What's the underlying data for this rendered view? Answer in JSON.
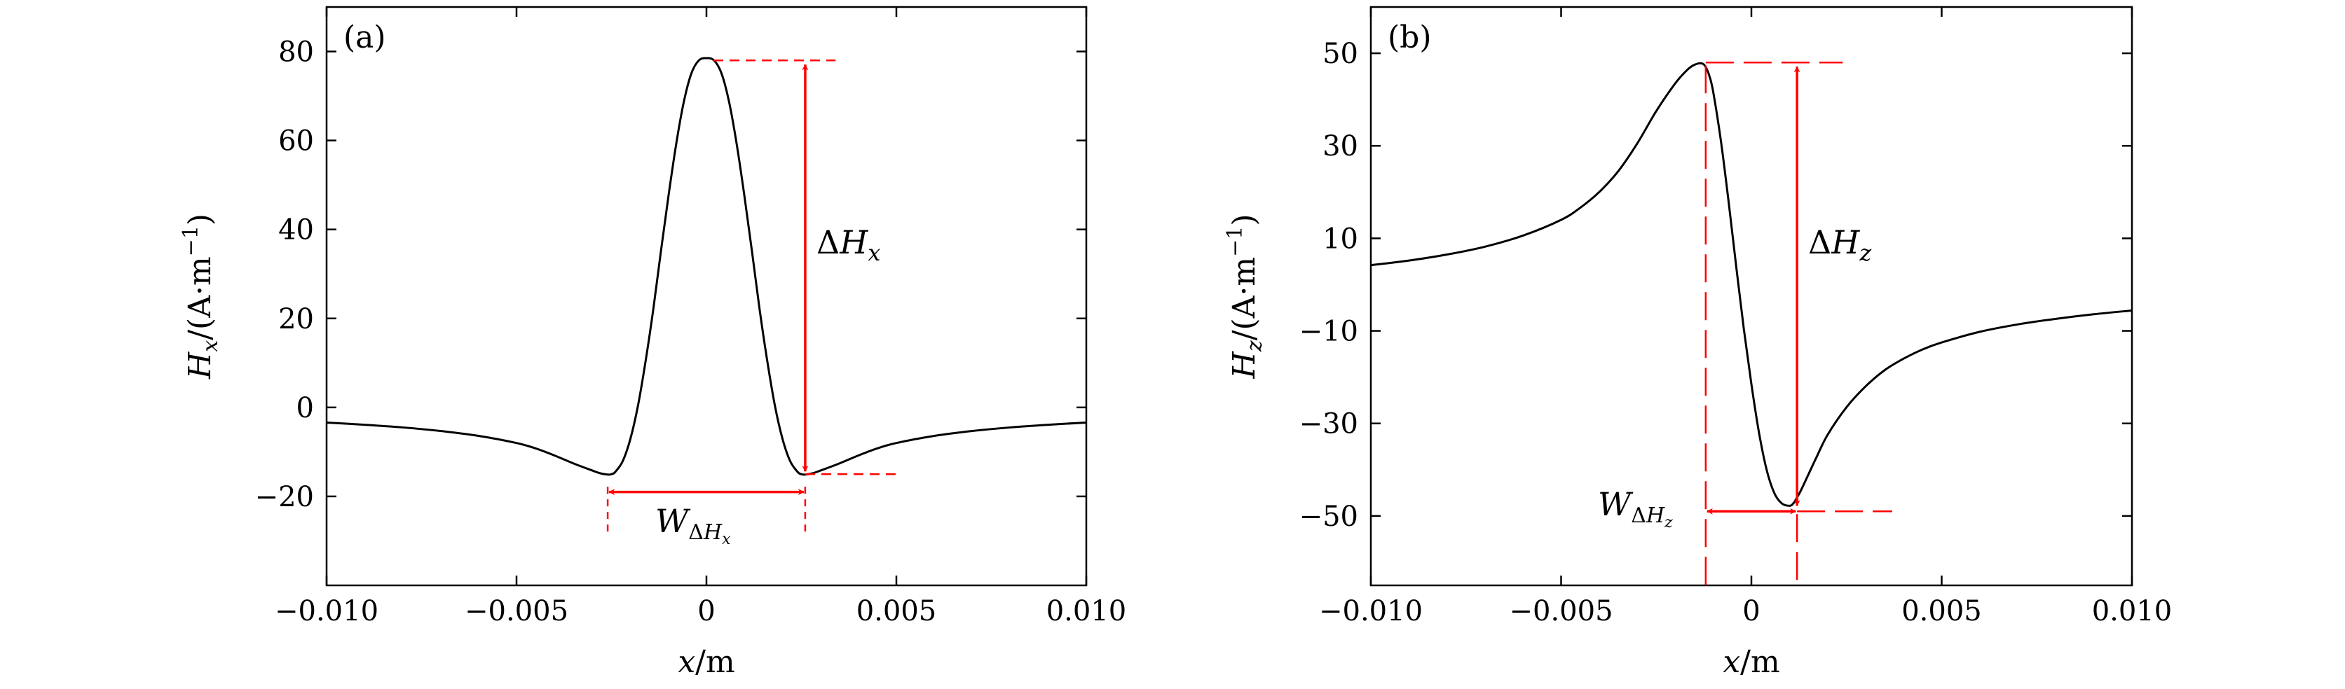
{
  "chart_data": [
    {
      "panel_label": "(a)",
      "type": "line",
      "xlabel_var": "x",
      "xlabel_unit": "/m",
      "ylabel_var": "H",
      "ylabel_sub": "x",
      "ylabel_unit": "/(A·m",
      "ylabel_exp": "−1",
      "ylabel_close": ")",
      "xlim": [
        -0.01,
        0.01
      ],
      "ylim": [
        -40,
        90
      ],
      "xticks": [
        -0.01,
        -0.005,
        0,
        0.005,
        0.01
      ],
      "xtick_labels": [
        "−0.010",
        "−0.005",
        "0",
        "0.005",
        "0.010"
      ],
      "yticks": [
        -20,
        0,
        20,
        40,
        60,
        80
      ],
      "ytick_labels": [
        "−20",
        "0",
        "20",
        "40",
        "60",
        "80"
      ],
      "series": [
        {
          "x": [
            -0.01,
            -0.009,
            -0.008,
            -0.007,
            -0.006,
            -0.005,
            -0.0045,
            -0.004,
            -0.0035,
            -0.003,
            -0.0028,
            -0.0026,
            -0.0025,
            -0.0024,
            -0.0022,
            -0.002,
            -0.0018,
            -0.0016,
            -0.0014,
            -0.0012,
            -0.001,
            -0.0008,
            -0.0006,
            -0.0004,
            -0.0002,
            0,
            0.0002,
            0.0004,
            0.0006,
            0.0008,
            0.001,
            0.0012,
            0.0014,
            0.0016,
            0.0018,
            0.002,
            0.0022,
            0.0024,
            0.0025,
            0.0026,
            0.0028,
            0.003,
            0.0035,
            0.004,
            0.0045,
            0.005,
            0.006,
            0.007,
            0.008,
            0.009,
            0.01
          ],
          "y": [
            -3.4,
            -3.9,
            -4.5,
            -5.3,
            -6.4,
            -8.0,
            -9.2,
            -10.8,
            -12.6,
            -14.2,
            -14.8,
            -15.1,
            -15.0,
            -14.5,
            -12.0,
            -7.0,
            0.5,
            10.5,
            22.0,
            35.0,
            47.5,
            59.0,
            68.5,
            75.0,
            78.0,
            78.5,
            78.0,
            75.0,
            68.5,
            59.0,
            47.5,
            35.0,
            22.0,
            10.5,
            0.5,
            -7.0,
            -12.0,
            -14.5,
            -15.0,
            -15.1,
            -14.8,
            -14.2,
            -12.6,
            -10.8,
            -9.2,
            -8.0,
            -6.4,
            -5.3,
            -4.5,
            -3.9,
            -3.4
          ]
        }
      ],
      "annotations": {
        "delta_var": "H",
        "delta_sub": "x",
        "delta_prefix": "Δ",
        "width_var": "W",
        "width_sub_prefix": "Δ",
        "width_sub_var": "H",
        "width_sub_sub": "x",
        "peak_y": 78.0,
        "trough_y": -15.0,
        "width_x": [
          -0.0026,
          0.0026
        ],
        "delta_x": 0.0026,
        "width_y": -19.0,
        "color": "#ff0000"
      }
    },
    {
      "panel_label": "(b)",
      "type": "line",
      "xlabel_var": "x",
      "xlabel_unit": "/m",
      "ylabel_var": "H",
      "ylabel_sub": "z",
      "ylabel_unit": "/(A·m",
      "ylabel_exp": "−1",
      "ylabel_close": ")",
      "xlim": [
        -0.01,
        0.01
      ],
      "ylim": [
        -65,
        60
      ],
      "xticks": [
        -0.01,
        -0.005,
        0,
        0.005,
        0.01
      ],
      "xtick_labels": [
        "−0.010",
        "−0.005",
        "0",
        "0.005",
        "0.010"
      ],
      "yticks": [
        -50,
        -30,
        -10,
        10,
        30,
        50
      ],
      "ytick_labels": [
        "−50",
        "−30",
        "−10",
        "10",
        "30",
        "50"
      ],
      "series": [
        {
          "x": [
            -0.01,
            -0.009,
            -0.008,
            -0.007,
            -0.006,
            -0.005,
            -0.0045,
            -0.004,
            -0.0035,
            -0.003,
            -0.0025,
            -0.002,
            -0.0017,
            -0.0015,
            -0.0013,
            -0.0012,
            -0.0011,
            -0.001,
            -0.0008,
            -0.0006,
            -0.0004,
            -0.0002,
            0,
            0.0002,
            0.0004,
            0.0006,
            0.0008,
            0.001,
            0.0011,
            0.0012,
            0.0013,
            0.0015,
            0.0017,
            0.002,
            0.0025,
            0.003,
            0.0035,
            0.004,
            0.0045,
            0.005,
            0.006,
            0.007,
            0.008,
            0.009,
            0.01
          ],
          "y": [
            4.2,
            5.2,
            6.5,
            8.2,
            10.6,
            14.0,
            16.6,
            20.0,
            24.5,
            30.5,
            37.5,
            43.5,
            46.3,
            47.5,
            47.8,
            47.0,
            45.0,
            41.5,
            31.0,
            18.0,
            4.0,
            -9.5,
            -21.5,
            -32.0,
            -40.0,
            -45.0,
            -47.3,
            -47.8,
            -47.3,
            -46.0,
            -44.5,
            -41.0,
            -37.5,
            -32.5,
            -26.5,
            -22.0,
            -18.5,
            -16.0,
            -14.0,
            -12.5,
            -10.2,
            -8.6,
            -7.4,
            -6.4,
            -5.6
          ]
        }
      ],
      "annotations": {
        "delta_var": "H",
        "delta_sub": "z",
        "delta_prefix": "Δ",
        "width_var": "W",
        "width_sub_prefix": "Δ",
        "width_sub_var": "H",
        "width_sub_sub": "z",
        "peak_x": -0.0012,
        "peak_y": 48.0,
        "trough_x": 0.0012,
        "trough_y": -49.0,
        "delta_x": 0.0012,
        "color": "#ff0000"
      }
    }
  ]
}
